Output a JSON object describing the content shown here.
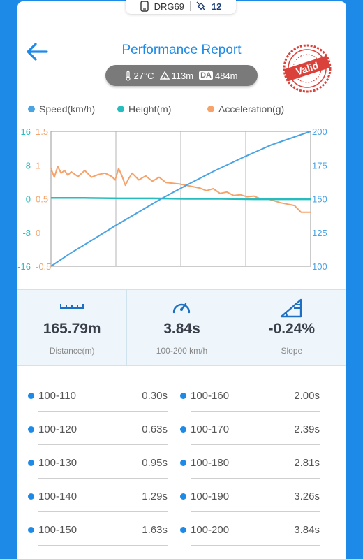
{
  "device": {
    "name": "DRG69",
    "satellites": "12"
  },
  "header": {
    "title": "Performance Report",
    "stamp": "Valid"
  },
  "conditions": {
    "temperature": "27°C",
    "altitude": "113m",
    "da_label": "DA",
    "density_altitude": "484m"
  },
  "legend": {
    "speed": "Speed(km/h)",
    "height": "Height(m)",
    "acceleration": "Acceleration(g)"
  },
  "colors": {
    "speed": "#4aa3e3",
    "height": "#27bdbe",
    "acceleration": "#f5a36b",
    "accent": "#1c8ae6"
  },
  "chart_data": {
    "type": "line",
    "grid": true,
    "axes": {
      "height_ticks": [
        "16",
        "8",
        "0",
        "-8",
        "-16"
      ],
      "accel_ticks": [
        "1.5",
        "1",
        "0.5",
        "0",
        "-0.5"
      ],
      "speed_ticks": [
        "200",
        "175",
        "150",
        "125",
        "100"
      ],
      "height_range": [
        -16,
        16
      ],
      "accel_range": [
        -0.5,
        1.5
      ],
      "speed_range": [
        100,
        200
      ],
      "time_range": [
        0,
        3.84
      ]
    },
    "series": [
      {
        "name": "Speed(km/h)",
        "axis": "speed",
        "t": [
          0,
          0.3,
          0.63,
          0.95,
          1.29,
          1.63,
          2.0,
          2.39,
          2.81,
          3.26,
          3.84
        ],
        "values": [
          100,
          110,
          120,
          130,
          140,
          150,
          160,
          170,
          180,
          190,
          200
        ]
      },
      {
        "name": "Height(m)",
        "axis": "height",
        "t": [
          0,
          0.5,
          1.0,
          1.5,
          2.0,
          2.5,
          3.0,
          3.5,
          3.84
        ],
        "values": [
          0.2,
          0.2,
          0.1,
          0.1,
          0.0,
          0.0,
          -0.1,
          -0.1,
          -0.1
        ]
      },
      {
        "name": "Acceleration(g)",
        "axis": "accel",
        "t": [
          0,
          0.05,
          0.1,
          0.15,
          0.2,
          0.25,
          0.3,
          0.4,
          0.5,
          0.6,
          0.7,
          0.8,
          0.9,
          0.95,
          1.0,
          1.05,
          1.1,
          1.15,
          1.2,
          1.3,
          1.4,
          1.5,
          1.6,
          1.7,
          1.8,
          1.9,
          2.0,
          2.1,
          2.2,
          2.3,
          2.4,
          2.5,
          2.6,
          2.7,
          2.8,
          2.9,
          3.0,
          3.1,
          3.2,
          3.3,
          3.4,
          3.5,
          3.6,
          3.7,
          3.84
        ],
        "values": [
          0.95,
          0.82,
          0.98,
          0.88,
          0.92,
          0.85,
          0.9,
          0.83,
          0.92,
          0.82,
          0.86,
          0.88,
          0.83,
          0.78,
          0.95,
          0.84,
          0.7,
          0.8,
          0.88,
          0.78,
          0.84,
          0.76,
          0.82,
          0.74,
          0.73,
          0.72,
          0.7,
          0.68,
          0.66,
          0.62,
          0.65,
          0.58,
          0.6,
          0.55,
          0.56,
          0.53,
          0.54,
          0.5,
          0.5,
          0.47,
          0.44,
          0.42,
          0.4,
          0.3,
          0.3
        ]
      }
    ]
  },
  "stats": {
    "distance": {
      "value": "165.79m",
      "label": "Distance(m)"
    },
    "time": {
      "value": "3.84s",
      "label": "100-200 km/h"
    },
    "slope": {
      "value": "-0.24%",
      "label": "Slope"
    }
  },
  "splits": [
    {
      "range": "100-110",
      "time": "0.30s"
    },
    {
      "range": "100-120",
      "time": "0.63s"
    },
    {
      "range": "100-130",
      "time": "0.95s"
    },
    {
      "range": "100-140",
      "time": "1.29s"
    },
    {
      "range": "100-150",
      "time": "1.63s"
    },
    {
      "range": "100-160",
      "time": "2.00s"
    },
    {
      "range": "100-170",
      "time": "2.39s"
    },
    {
      "range": "100-180",
      "time": "2.81s"
    },
    {
      "range": "100-190",
      "time": "3.26s"
    },
    {
      "range": "100-200",
      "time": "3.84s"
    }
  ]
}
